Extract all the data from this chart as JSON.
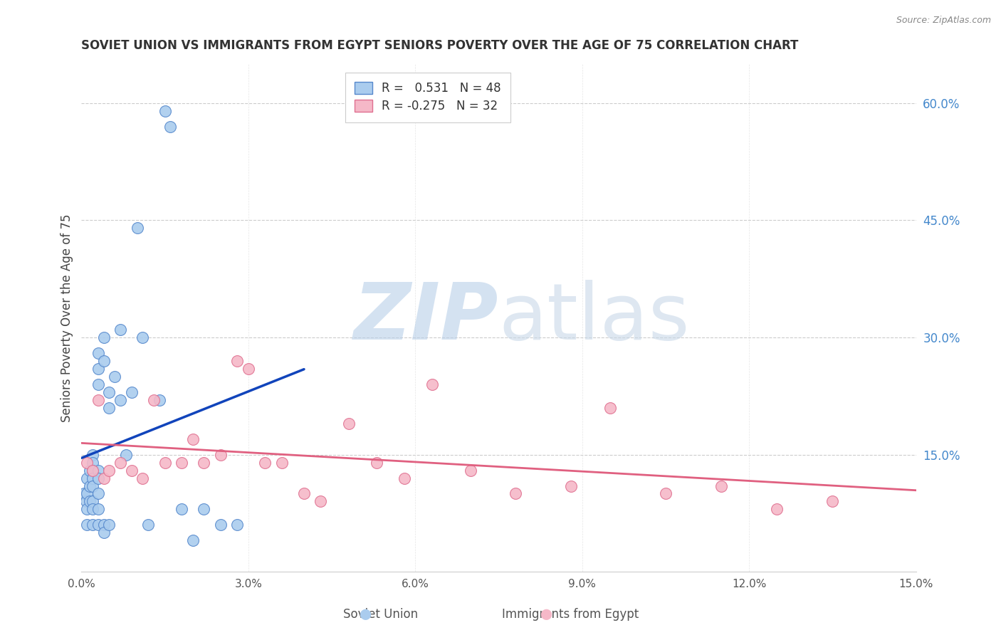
{
  "title": "SOVIET UNION VS IMMIGRANTS FROM EGYPT SENIORS POVERTY OVER THE AGE OF 75 CORRELATION CHART",
  "source": "Source: ZipAtlas.com",
  "ylabel": "Seniors Poverty Over the Age of 75",
  "xlim": [
    0.0,
    0.15
  ],
  "ylim": [
    0.0,
    0.65
  ],
  "xticks": [
    0.0,
    0.03,
    0.06,
    0.09,
    0.12,
    0.15
  ],
  "xtick_labels": [
    "0.0%",
    "3.0%",
    "6.0%",
    "9.0%",
    "12.0%",
    "15.0%"
  ],
  "yticks_right": [
    0.15,
    0.3,
    0.45,
    0.6
  ],
  "ytick_labels_right": [
    "15.0%",
    "30.0%",
    "45.0%",
    "60.0%"
  ],
  "grid_color": "#cccccc",
  "background_color": "#ffffff",
  "soviet_color": "#aaccee",
  "soviet_edge_color": "#5588cc",
  "soviet_line_color": "#1144bb",
  "soviet_dash_color": "#88aadd",
  "egypt_color": "#f5b8c8",
  "egypt_edge_color": "#e07090",
  "egypt_line_color": "#e06080",
  "soviet_R": 0.531,
  "soviet_N": 48,
  "egypt_R": -0.275,
  "egypt_N": 32,
  "watermark_zip_color": "#b8cfe8",
  "watermark_atlas_color": "#c8d8e8",
  "soviet_x": [
    0.0005,
    0.0008,
    0.001,
    0.001,
    0.001,
    0.001,
    0.0015,
    0.0015,
    0.0015,
    0.002,
    0.002,
    0.002,
    0.002,
    0.002,
    0.002,
    0.002,
    0.002,
    0.003,
    0.003,
    0.003,
    0.003,
    0.003,
    0.003,
    0.003,
    0.003,
    0.004,
    0.004,
    0.004,
    0.004,
    0.005,
    0.005,
    0.005,
    0.006,
    0.007,
    0.007,
    0.008,
    0.009,
    0.01,
    0.011,
    0.012,
    0.014,
    0.015,
    0.016,
    0.018,
    0.02,
    0.022,
    0.025,
    0.028
  ],
  "soviet_y": [
    0.1,
    0.09,
    0.12,
    0.1,
    0.08,
    0.06,
    0.13,
    0.11,
    0.09,
    0.15,
    0.14,
    0.13,
    0.12,
    0.11,
    0.09,
    0.08,
    0.06,
    0.28,
    0.26,
    0.24,
    0.13,
    0.12,
    0.1,
    0.08,
    0.06,
    0.3,
    0.27,
    0.06,
    0.05,
    0.23,
    0.21,
    0.06,
    0.25,
    0.31,
    0.22,
    0.15,
    0.23,
    0.44,
    0.3,
    0.06,
    0.22,
    0.59,
    0.57,
    0.08,
    0.04,
    0.08,
    0.06,
    0.06
  ],
  "egypt_x": [
    0.001,
    0.002,
    0.003,
    0.004,
    0.005,
    0.007,
    0.009,
    0.011,
    0.013,
    0.015,
    0.018,
    0.02,
    0.022,
    0.025,
    0.028,
    0.03,
    0.033,
    0.036,
    0.04,
    0.043,
    0.048,
    0.053,
    0.058,
    0.063,
    0.07,
    0.078,
    0.088,
    0.095,
    0.105,
    0.115,
    0.125,
    0.135
  ],
  "egypt_y": [
    0.14,
    0.13,
    0.22,
    0.12,
    0.13,
    0.14,
    0.13,
    0.12,
    0.22,
    0.14,
    0.14,
    0.17,
    0.14,
    0.15,
    0.27,
    0.26,
    0.14,
    0.14,
    0.1,
    0.09,
    0.19,
    0.14,
    0.12,
    0.24,
    0.13,
    0.1,
    0.11,
    0.21,
    0.1,
    0.11,
    0.08,
    0.09
  ]
}
